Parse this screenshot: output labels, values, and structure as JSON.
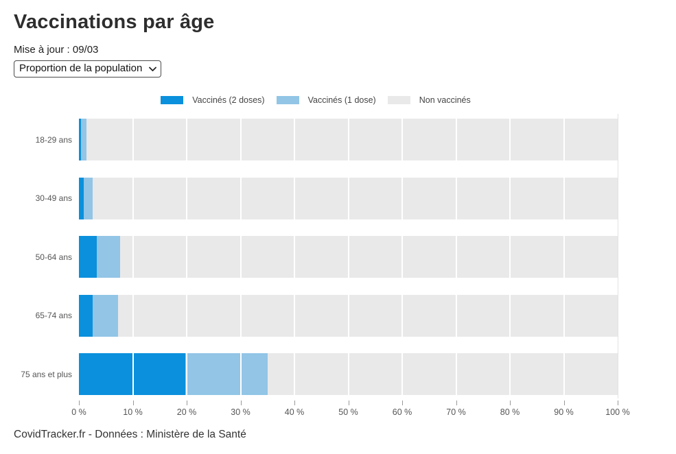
{
  "page": {
    "title": "Vaccinations par âge",
    "updated_label": "Mise à jour : 09/03",
    "footer": "CovidTracker.fr - Données : Ministère de la Santé"
  },
  "controls": {
    "metric_select": {
      "value": "Proportion de la population",
      "options": [
        "Proportion de la population"
      ]
    }
  },
  "colors": {
    "dose2_blue": "#0a90dc",
    "dose1_light_blue": "#92c5e6",
    "unvaccinated_gray": "#e9e9e9",
    "grid_over_bars": "#ffffff",
    "plot_edge_line": "#e2e2e2",
    "axis_text": "#555555",
    "legend_text": "#444444"
  },
  "chart_data": {
    "type": "bar",
    "orientation": "horizontal",
    "stacked": true,
    "title": "Vaccinations par âge",
    "xlabel": "",
    "ylabel": "",
    "xlim": [
      0,
      100
    ],
    "grid": "vertical, white over bars",
    "legend_position": "top-center",
    "categories": [
      "18-29 ans",
      "30-49 ans",
      "50-64 ans",
      "65-74 ans",
      "75 ans et plus"
    ],
    "series": [
      {
        "name": "Vaccinés (2 doses)",
        "color": "#0a90dc",
        "values": [
          0.4,
          0.9,
          3.3,
          2.6,
          19.8
        ]
      },
      {
        "name": "Vaccinés (1 dose)",
        "color": "#92c5e6",
        "values": [
          1.0,
          1.7,
          4.4,
          4.6,
          15.2
        ]
      },
      {
        "name": "Non vaccinés",
        "color": "#e9e9e9",
        "values": [
          98.6,
          97.4,
          92.3,
          92.8,
          65.0
        ]
      }
    ],
    "x_tick_values": [
      0,
      10,
      20,
      30,
      40,
      50,
      60,
      70,
      80,
      90,
      100
    ],
    "x_tick_labels": [
      "0 %",
      "10 %",
      "20 %",
      "30 %",
      "40 %",
      "50 %",
      "60 %",
      "70 %",
      "80 %",
      "90 %",
      "100 %"
    ]
  }
}
